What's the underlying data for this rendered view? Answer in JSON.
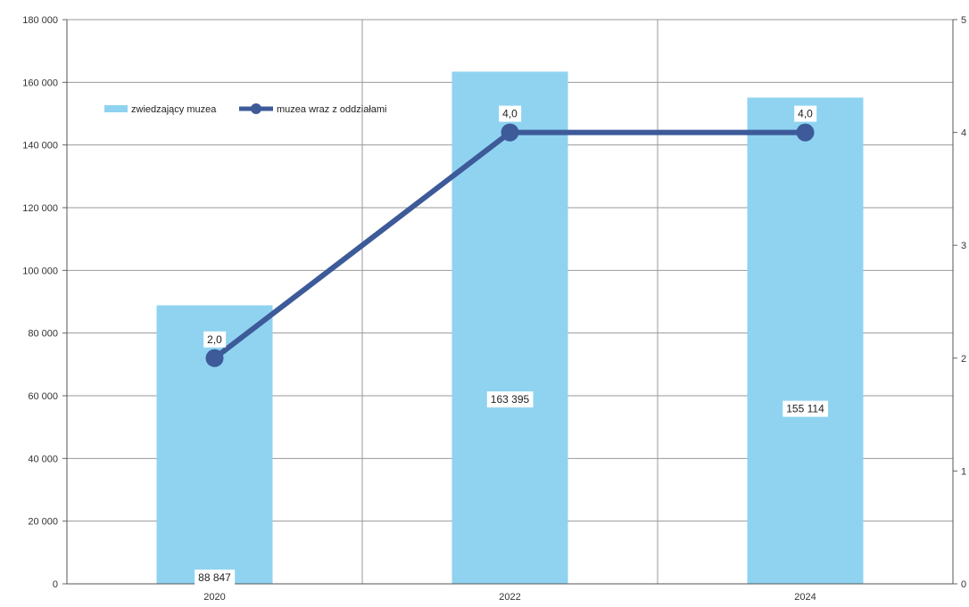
{
  "chart_data": {
    "type": "bar",
    "categories": [
      "2020",
      "2022",
      "2024"
    ],
    "series": [
      {
        "name": "zwiedzający muzea",
        "type": "bar",
        "axis": "left",
        "values": [
          88847,
          163395,
          155114
        ],
        "labels": [
          "88 847",
          "163 395",
          "155 114"
        ],
        "color": "#8fd3f0"
      },
      {
        "name": "muzea wraz z oddziałami",
        "type": "line",
        "axis": "right",
        "values": [
          2.0,
          4.0,
          4.0
        ],
        "labels": [
          "2,0",
          "4,0",
          "4,0"
        ],
        "color": "#3d5a99"
      }
    ],
    "y_left": {
      "ylim": [
        0,
        180000
      ],
      "ticks": [
        0,
        20000,
        40000,
        60000,
        80000,
        100000,
        120000,
        140000,
        160000,
        180000
      ],
      "tick_labels": [
        "0",
        "20 000",
        "40 000",
        "60 000",
        "80 000",
        "100 000",
        "120 000",
        "140 000",
        "160 000",
        "180 000"
      ]
    },
    "y_right": {
      "ylim": [
        0,
        5
      ],
      "ticks": [
        0,
        1,
        2,
        3,
        4,
        5
      ],
      "tick_labels": [
        "0",
        "1",
        "2",
        "3",
        "4",
        "5"
      ]
    },
    "grid": true,
    "legend_position": "top-left"
  }
}
